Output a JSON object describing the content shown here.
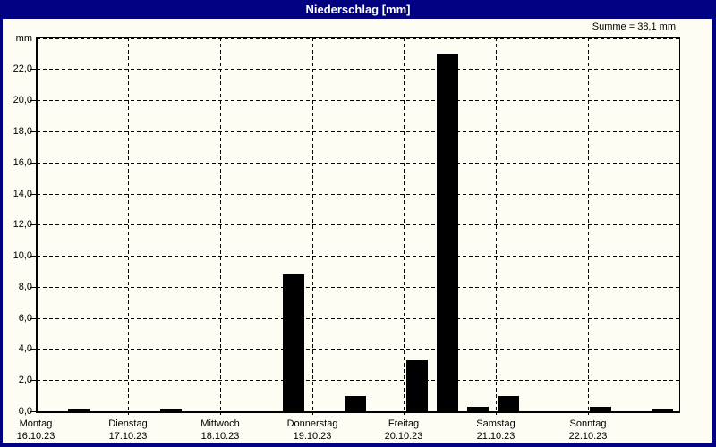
{
  "window": {
    "title": "Niederschlag [mm]"
  },
  "header": {
    "sum_label": "Summe = 38,1 mm"
  },
  "colors": {
    "frame_bg": "#000080",
    "title_text": "#ffffff",
    "content_bg": "#fdfdf4",
    "bar": "#000000",
    "grid": "#000000",
    "text": "#000000"
  },
  "chart_data": {
    "type": "bar",
    "title": "Niederschlag [mm]",
    "unit_label": "mm",
    "ylabel": "mm",
    "ylim": [
      0,
      24
    ],
    "grid": true,
    "sum_annotation": "Summe = 38,1 mm",
    "total_mm": 38.1,
    "yticks": [
      {
        "value": 0,
        "label": "0,0"
      },
      {
        "value": 2,
        "label": "2,0"
      },
      {
        "value": 4,
        "label": "4,0"
      },
      {
        "value": 6,
        "label": "6,0"
      },
      {
        "value": 8,
        "label": "8,0"
      },
      {
        "value": 10,
        "label": "10,0"
      },
      {
        "value": 12,
        "label": "12,0"
      },
      {
        "value": 14,
        "label": "14,0"
      },
      {
        "value": 16,
        "label": "16,0"
      },
      {
        "value": 18,
        "label": "18,0"
      },
      {
        "value": 20,
        "label": "20,0"
      },
      {
        "value": 22,
        "label": "22,0"
      }
    ],
    "days": [
      {
        "name": "Montag",
        "date": "16.10.23"
      },
      {
        "name": "Dienstag",
        "date": "17.10.23"
      },
      {
        "name": "Mittwoch",
        "date": "18.10.23"
      },
      {
        "name": "Donnerstag",
        "date": "19.10.23"
      },
      {
        "name": "Freitag",
        "date": "20.10.23"
      },
      {
        "name": "Samstag",
        "date": "21.10.23"
      },
      {
        "name": "Sonntag",
        "date": "22.10.23"
      }
    ],
    "slots_per_day": 3,
    "bars": [
      {
        "day": 0,
        "slot": 1,
        "value": 0.2
      },
      {
        "day": 1,
        "slot": 1,
        "value": 0.1
      },
      {
        "day": 2,
        "slot": 2,
        "value": 8.8
      },
      {
        "day": 3,
        "slot": 1,
        "value": 1.0
      },
      {
        "day": 4,
        "slot": 0,
        "value": 3.3
      },
      {
        "day": 4,
        "slot": 1,
        "value": 23.0
      },
      {
        "day": 4,
        "slot": 2,
        "value": 0.3
      },
      {
        "day": 5,
        "slot": 0,
        "value": 1.0
      },
      {
        "day": 6,
        "slot": 0,
        "value": 0.3
      },
      {
        "day": 6,
        "slot": 2,
        "value": 0.1
      }
    ]
  }
}
